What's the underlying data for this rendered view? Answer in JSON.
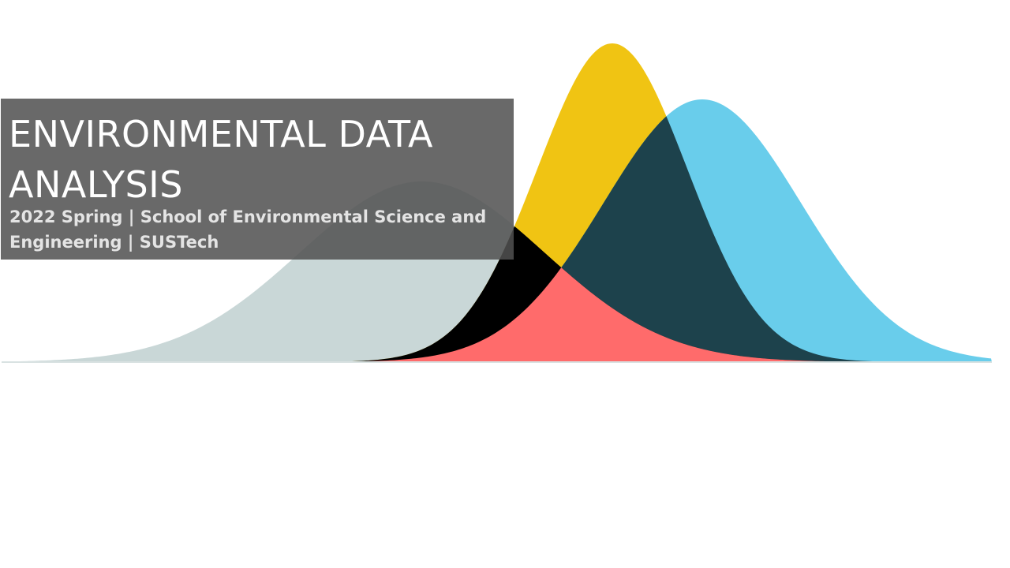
{
  "slide": {
    "title": "ENVIRONMENTAL DATA ANALYSIS",
    "subtitle": "2022 Spring  | School of Environmental Science and Engineering | SUSTech"
  },
  "graphic": {
    "description_free": true,
    "curves": [
      {
        "id": "grey-curve",
        "color": "#c9d7d7"
      },
      {
        "id": "yellow-curve",
        "color": "#f0c413"
      },
      {
        "id": "blue-curve",
        "color": "#69cdeb"
      }
    ],
    "overlap_colors": {
      "grey_yellow": "#000000",
      "grey_yellow_blue": "#ff6b6b",
      "yellow_blue": "#1d424c"
    },
    "title_box_color": "#505050"
  }
}
